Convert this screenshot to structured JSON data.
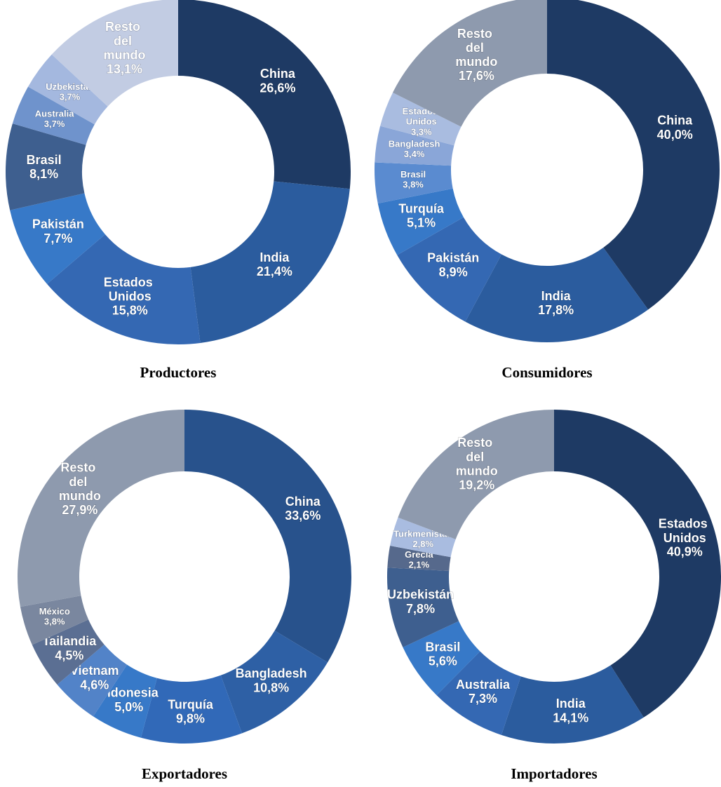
{
  "chart_data": [
    {
      "type": "pie",
      "title": "Productores",
      "categories": [
        "China",
        "India",
        "Estados Unidos",
        "Pakistán",
        "Brasil",
        "Australia",
        "Uzbekistán",
        "Resto del mundo"
      ],
      "values": [
        26.6,
        21.4,
        15.8,
        7.7,
        8.1,
        3.7,
        3.7,
        13.1
      ],
      "value_labels": [
        "26,6%",
        "21,4%",
        "15,8%",
        "7,7%",
        "8,1%",
        "3,7%",
        "3,7%",
        "13,1%"
      ],
      "colors": [
        "#1e3a64",
        "#2b5c9e",
        "#3468b3",
        "#3779c8",
        "#3e5f8f",
        "#6f93cc",
        "#a4b8df",
        "#c2cce3"
      ]
    },
    {
      "type": "pie",
      "title": "Consumidores",
      "categories": [
        "China",
        "India",
        "Pakistán",
        "Turquía",
        "Brasil",
        "Bangladesh",
        "Estados Unidos",
        "Resto del mundo"
      ],
      "values": [
        40.0,
        17.8,
        8.9,
        5.1,
        3.8,
        3.4,
        3.3,
        17.6
      ],
      "value_labels": [
        "40,0%",
        "17,8%",
        "8,9%",
        "5,1%",
        "3,8%",
        "3,4%",
        "3,3%",
        "17,6%"
      ],
      "colors": [
        "#1e3a64",
        "#2b5c9e",
        "#3468b3",
        "#3779c8",
        "#5a8bd0",
        "#8aa6d8",
        "#a9bce0",
        "#8e9aae"
      ]
    },
    {
      "type": "pie",
      "title": "Exportadores",
      "categories": [
        "China",
        "Bangladesh",
        "Turquía",
        "Indonesia",
        "Vietnam",
        "Tailandia",
        "México",
        "Resto del mundo"
      ],
      "values": [
        33.6,
        10.8,
        9.8,
        5.0,
        4.6,
        4.5,
        3.8,
        27.9
      ],
      "value_labels": [
        "33,6%",
        "10,8%",
        "9,8%",
        "5,0%",
        "4,6%",
        "4,5%",
        "3,8%",
        "27,9%"
      ],
      "colors": [
        "#28528c",
        "#2e60a5",
        "#3169b8",
        "#3779c8",
        "#5283c8",
        "#5b6f93",
        "#7a879f",
        "#8e9aae"
      ]
    },
    {
      "type": "pie",
      "title": "Importadores",
      "categories": [
        "Estados Unidos",
        "India",
        "Australia",
        "Brasil",
        "Uzbekistán",
        "Grecia",
        "Turkmenistán",
        "Resto del mundo"
      ],
      "values": [
        40.9,
        14.1,
        7.3,
        5.6,
        7.8,
        2.1,
        2.8,
        19.2
      ],
      "value_labels": [
        "40,9%",
        "14,1%",
        "7,3%",
        "5,6%",
        "7,8%",
        "2,1%",
        "2,8%",
        "19,2%"
      ],
      "colors": [
        "#1e3a64",
        "#2b5c9e",
        "#3468b3",
        "#3779c8",
        "#3e5f8f",
        "#56698c",
        "#a9bce0",
        "#8e9aae"
      ]
    }
  ]
}
